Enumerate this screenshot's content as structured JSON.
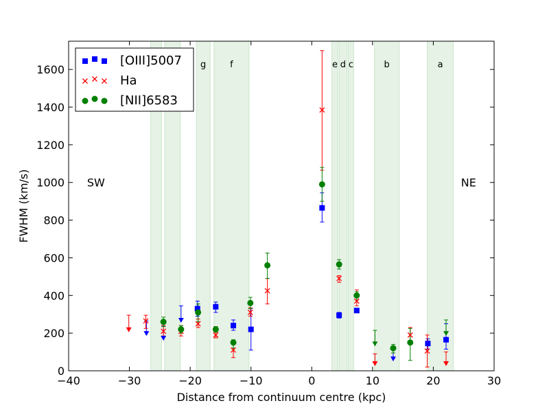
{
  "chart_data": {
    "type": "scatter",
    "xlabel": "Distance from continuum centre (kpc)",
    "ylabel": "FWHM (km/s)",
    "xlim": [
      -40,
      30
    ],
    "ylim": [
      0,
      1750
    ],
    "xticks": [
      -40,
      -30,
      -20,
      -10,
      0,
      10,
      20,
      30
    ],
    "yticks": [
      0,
      200,
      400,
      600,
      800,
      1000,
      1200,
      1400,
      1600
    ],
    "grid": false,
    "legend_position": "top-left",
    "annotations": [
      {
        "text": "SW",
        "x": -35.5,
        "y": 1000
      },
      {
        "text": "NE",
        "x": 25.8,
        "y": 1000
      }
    ],
    "bands": [
      {
        "x0": -26.5,
        "x1": -24.7,
        "label": ""
      },
      {
        "x0": -24.2,
        "x1": -21.6,
        "label": ""
      },
      {
        "x0": -19.0,
        "x1": -16.7,
        "label": "g"
      },
      {
        "x0": -16.1,
        "x1": -10.3,
        "label": "f"
      },
      {
        "x0": 3.3,
        "x1": 4.3,
        "label": "e"
      },
      {
        "x0": 4.5,
        "x1": 5.8,
        "label": "d"
      },
      {
        "x0": 6.0,
        "x1": 6.9,
        "label": "c"
      },
      {
        "x0": 10.3,
        "x1": 14.4,
        "label": "b"
      },
      {
        "x0": 19.0,
        "x1": 23.3,
        "label": "a"
      }
    ],
    "series": [
      {
        "name": "[OIII]5007",
        "color": "#0000ff",
        "marker": "square",
        "points": [
          {
            "x": -27.2,
            "y": 215,
            "lo": 185,
            "hi": 265,
            "upper_limit": true
          },
          {
            "x": -24.4,
            "y": 205,
            "lo": 160,
            "hi": 240,
            "upper_limit": true
          },
          {
            "x": -21.5,
            "y": 280,
            "lo": 255,
            "hi": 345,
            "upper_limit": true
          },
          {
            "x": -18.8,
            "y": 330,
            "lo": 290,
            "hi": 370
          },
          {
            "x": -15.8,
            "y": 340,
            "lo": 310,
            "hi": 365
          },
          {
            "x": -12.9,
            "y": 240,
            "lo": 215,
            "hi": 270
          },
          {
            "x": -10.0,
            "y": 220,
            "lo": 110,
            "hi": 330
          },
          {
            "x": 1.7,
            "y": 865,
            "lo": 790,
            "hi": 945
          },
          {
            "x": 4.5,
            "y": 295,
            "lo": 280,
            "hi": 310
          },
          {
            "x": 7.4,
            "y": 320,
            "lo": 310,
            "hi": 330
          },
          {
            "x": 13.4,
            "y": 85,
            "lo": 50,
            "hi": 120,
            "upper_limit": true
          },
          {
            "x": 19.1,
            "y": 145,
            "lo": 115,
            "hi": 170
          },
          {
            "x": 22.1,
            "y": 165,
            "lo": 115,
            "hi": 250
          }
        ]
      },
      {
        "name": "Ha",
        "color": "#ff0000",
        "marker": "x",
        "points": [
          {
            "x": -30.1,
            "y": 240,
            "lo": 205,
            "hi": 295,
            "upper_limit": true
          },
          {
            "x": -27.3,
            "y": 265,
            "lo": 225,
            "hi": 295
          },
          {
            "x": -24.4,
            "y": 210,
            "lo": 185,
            "hi": 240
          },
          {
            "x": -21.5,
            "y": 210,
            "lo": 185,
            "hi": 240
          },
          {
            "x": -18.7,
            "y": 250,
            "lo": 230,
            "hi": 275
          },
          {
            "x": -15.8,
            "y": 190,
            "lo": 175,
            "hi": 205
          },
          {
            "x": -12.9,
            "y": 110,
            "lo": 70,
            "hi": 150
          },
          {
            "x": -10.1,
            "y": 310,
            "lo": 290,
            "hi": 335
          },
          {
            "x": -7.3,
            "y": 425,
            "lo": 355,
            "hi": 490
          },
          {
            "x": 1.7,
            "y": 1385,
            "lo": 1065,
            "hi": 1700
          },
          {
            "x": 4.5,
            "y": 490,
            "lo": 470,
            "hi": 505
          },
          {
            "x": 7.4,
            "y": 370,
            "lo": 345,
            "hi": 430
          },
          {
            "x": 10.4,
            "y": 55,
            "lo": 25,
            "hi": 90,
            "upper_limit": true
          },
          {
            "x": 16.2,
            "y": 190,
            "lo": 155,
            "hi": 230
          },
          {
            "x": 19.0,
            "y": 105,
            "lo": 20,
            "hi": 190
          },
          {
            "x": 22.1,
            "y": 60,
            "lo": 25,
            "hi": 100,
            "upper_limit": true
          }
        ]
      },
      {
        "name": "[NII]6583",
        "color": "#008000",
        "marker": "circle",
        "points": [
          {
            "x": -24.4,
            "y": 260,
            "lo": 235,
            "hi": 285
          },
          {
            "x": -21.5,
            "y": 220,
            "lo": 200,
            "hi": 240
          },
          {
            "x": -18.7,
            "y": 310,
            "lo": 260,
            "hi": 355
          },
          {
            "x": -15.8,
            "y": 220,
            "lo": 205,
            "hi": 235
          },
          {
            "x": -12.9,
            "y": 150,
            "lo": 120,
            "hi": 165
          },
          {
            "x": -10.1,
            "y": 360,
            "lo": 330,
            "hi": 390
          },
          {
            "x": -7.3,
            "y": 560,
            "lo": 490,
            "hi": 625
          },
          {
            "x": 1.7,
            "y": 990,
            "lo": 900,
            "hi": 1080
          },
          {
            "x": 4.5,
            "y": 565,
            "lo": 540,
            "hi": 590
          },
          {
            "x": 7.4,
            "y": 400,
            "lo": 375,
            "hi": 420
          },
          {
            "x": 10.4,
            "y": 180,
            "lo": 130,
            "hi": 215,
            "upper_limit": true
          },
          {
            "x": 13.4,
            "y": 120,
            "lo": 95,
            "hi": 140
          },
          {
            "x": 16.2,
            "y": 150,
            "lo": 55,
            "hi": 225
          },
          {
            "x": 22.1,
            "y": 220,
            "lo": 185,
            "hi": 270,
            "upper_limit": true
          }
        ]
      }
    ]
  }
}
